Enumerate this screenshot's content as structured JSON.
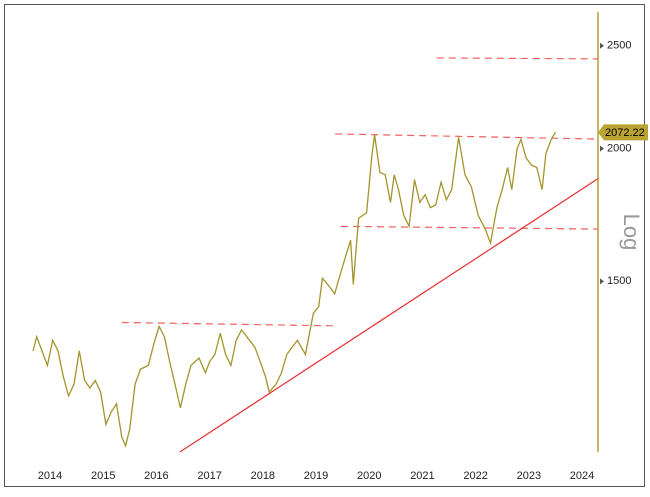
{
  "chart_data": {
    "type": "line",
    "y_axis_label": "Log",
    "log_scale": true,
    "xlim": [
      2014.18,
      2024.8
    ],
    "ylim": [
      1036,
      2690
    ],
    "yticks": [
      1500,
      2000,
      2500
    ],
    "xticks": [
      {
        "value": 2014.5,
        "label": "2014"
      },
      {
        "value": 2015.5,
        "label": "2015"
      },
      {
        "value": 2016.5,
        "label": "2016"
      },
      {
        "value": 2017.5,
        "label": "2017"
      },
      {
        "value": 2018.5,
        "label": "2018"
      },
      {
        "value": 2019.5,
        "label": "2019"
      },
      {
        "value": 2020.5,
        "label": "2020"
      },
      {
        "value": 2021.5,
        "label": "2021"
      },
      {
        "value": 2022.5,
        "label": "2022"
      },
      {
        "value": 2023.5,
        "label": "2023"
      },
      {
        "value": 2024.5,
        "label": "2024"
      }
    ],
    "axis_color": "#c8b664",
    "tag_color": "#b9a332",
    "series": [
      {
        "color": "#a3952c",
        "x": [
          2014.18,
          2014.25,
          2014.35,
          2014.45,
          2014.55,
          2014.65,
          2014.75,
          2014.85,
          2014.95,
          2015.05,
          2015.15,
          2015.25,
          2015.35,
          2015.45,
          2015.55,
          2015.65,
          2015.75,
          2015.85,
          2015.92,
          2016.0,
          2016.1,
          2016.2,
          2016.35,
          2016.45,
          2016.55,
          2016.65,
          2016.75,
          2016.85,
          2016.95,
          2017.05,
          2017.15,
          2017.3,
          2017.42,
          2017.5,
          2017.6,
          2017.7,
          2017.8,
          2017.9,
          2018.0,
          2018.1,
          2018.2,
          2018.35,
          2018.45,
          2018.55,
          2018.62,
          2018.75,
          2018.85,
          2018.95,
          2019.05,
          2019.15,
          2019.3,
          2019.45,
          2019.55,
          2019.62,
          2019.72,
          2019.85,
          2019.95,
          2020.05,
          2020.15,
          2020.2,
          2020.3,
          2020.45,
          2020.55,
          2020.6,
          2020.7,
          2020.8,
          2020.9,
          2020.97,
          2021.05,
          2021.15,
          2021.25,
          2021.35,
          2021.45,
          2021.55,
          2021.65,
          2021.75,
          2021.85,
          2021.95,
          2022.05,
          2022.18,
          2022.3,
          2022.42,
          2022.55,
          2022.68,
          2022.78,
          2022.9,
          2023.0,
          2023.1,
          2023.18,
          2023.28,
          2023.35,
          2023.45,
          2023.55,
          2023.65,
          2023.75,
          2023.82,
          2023.92,
          2024.0
        ],
        "values": [
          1290,
          1330,
          1290,
          1250,
          1320,
          1290,
          1220,
          1170,
          1200,
          1290,
          1210,
          1190,
          1210,
          1180,
          1100,
          1130,
          1150,
          1070,
          1050,
          1090,
          1200,
          1240,
          1250,
          1310,
          1360,
          1330,
          1260,
          1200,
          1140,
          1200,
          1250,
          1270,
          1230,
          1260,
          1280,
          1340,
          1280,
          1250,
          1320,
          1350,
          1330,
          1300,
          1260,
          1220,
          1180,
          1200,
          1230,
          1280,
          1300,
          1320,
          1280,
          1400,
          1420,
          1510,
          1490,
          1460,
          1520,
          1580,
          1640,
          1490,
          1720,
          1740,
          1970,
          2060,
          1900,
          1890,
          1780,
          1890,
          1830,
          1730,
          1690,
          1870,
          1780,
          1810,
          1760,
          1770,
          1860,
          1790,
          1830,
          2050,
          1890,
          1840,
          1730,
          1680,
          1630,
          1760,
          1830,
          1920,
          1830,
          2000,
          2040,
          1960,
          1930,
          1920,
          1830,
          1980,
          2040,
          2072.22
        ]
      }
    ],
    "lines": [
      {
        "style": "dashed",
        "color": "#f06060",
        "x": [
          2021.77,
          2024.8
        ],
        "values": [
          2435,
          2430
        ]
      },
      {
        "style": "dashed",
        "color": "#f06060",
        "x": [
          2019.86,
          2024.8
        ],
        "values": [
          2065,
          2042
        ]
      },
      {
        "style": "dashed",
        "color": "#f06060",
        "x": [
          2019.97,
          2024.8
        ],
        "values": [
          1690,
          1680
        ]
      },
      {
        "style": "dashed",
        "color": "#f06060",
        "x": [
          2015.85,
          2019.86
        ],
        "values": [
          1372,
          1362
        ]
      },
      {
        "style": "solid",
        "color": "#e83030",
        "x": [
          2016.94,
          2024.8
        ],
        "values": [
          1036,
          1874
        ]
      }
    ]
  }
}
